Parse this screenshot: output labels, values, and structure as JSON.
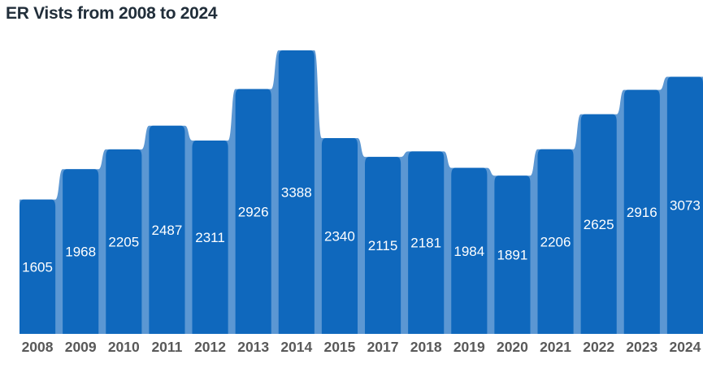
{
  "chart_data": {
    "type": "bar",
    "title": "ER Vists from 2008 to 2024",
    "categories": [
      "2008",
      "2009",
      "2010",
      "2011",
      "2012",
      "2013",
      "2014",
      "2015",
      "2017",
      "2018",
      "2019",
      "2020",
      "2021",
      "2022",
      "2023",
      "2024"
    ],
    "values": [
      1605,
      1968,
      2205,
      2487,
      2311,
      2926,
      3388,
      2340,
      2115,
      2181,
      1984,
      1891,
      2206,
      2625,
      2916,
      3073
    ],
    "xlabel": "",
    "ylabel": "",
    "ylim": [
      0,
      3400
    ],
    "grid": false,
    "legend": "none",
    "axes_visible": false,
    "value_labels": "inside-center-white",
    "colors": {
      "bar": "#0f68bd",
      "connector": "#5b97d3",
      "value_label": "#ffffff",
      "year_label": "#595959",
      "title": "#212e3a",
      "background": "#ffffff"
    }
  }
}
